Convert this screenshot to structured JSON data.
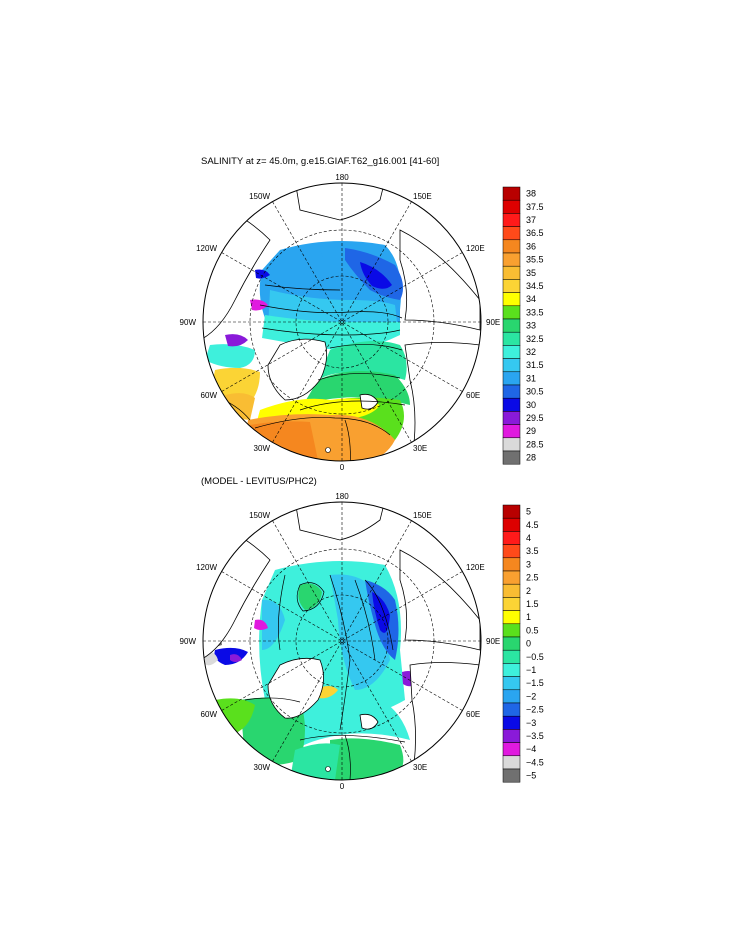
{
  "panel_top": {
    "title": "SALINITY at z=  45.0m, g.e15.GIAF.T62_g16.001 [41-60]",
    "meridian_labels": {
      "top": "180",
      "bottom": "0",
      "left_mid": "90W",
      "right_mid": "90E",
      "left_upper": "120W",
      "right_upper": "120E",
      "left_top": "150W",
      "right_top": "150E",
      "left_lower": "60W",
      "right_lower": "60E",
      "left_bottom": "30W",
      "right_bottom": "30E"
    },
    "colorbar": {
      "labels": [
        "38",
        "37.5",
        "37",
        "36.5",
        "36",
        "35.5",
        "35",
        "34.5",
        "34",
        "33.5",
        "33",
        "32.5",
        "32",
        "31.5",
        "31",
        "30.5",
        "30",
        "29.5",
        "29",
        "28.5",
        "28"
      ],
      "colors": [
        "#b80000",
        "#dd0000",
        "#ff1a1a",
        "#ff4a1a",
        "#f5871f",
        "#f9a030",
        "#f9bd33",
        "#fbd435",
        "#ffff00",
        "#5ae01d",
        "#29d66f",
        "#2be5a2",
        "#3ef0dc",
        "#35c8f0",
        "#2aa5f0",
        "#1f66e6",
        "#0a0ae6",
        "#8a1ad9",
        "#e01adf",
        "#dadada",
        "#707070"
      ]
    }
  },
  "panel_bottom": {
    "title": "(MODEL - LEVITUS/PHC2)",
    "meridian_labels": {
      "top": "180",
      "bottom": "0",
      "left_mid": "90W",
      "right_mid": "90E",
      "left_upper": "120W",
      "right_upper": "120E",
      "left_top": "150W",
      "right_top": "150E",
      "left_lower": "60W",
      "right_lower": "60E",
      "left_bottom": "30W",
      "right_bottom": "30E"
    },
    "colorbar": {
      "labels": [
        "5",
        "4.5",
        "4",
        "3.5",
        "3",
        "2.5",
        "2",
        "1.5",
        "1",
        "0.5",
        "0",
        "−0.5",
        "−1",
        "−1.5",
        "−2",
        "−2.5",
        "−3",
        "−3.5",
        "−4",
        "−4.5",
        "−5"
      ],
      "colors": [
        "#b80000",
        "#dd0000",
        "#ff1a1a",
        "#ff4a1a",
        "#f5871f",
        "#f9a030",
        "#f9bd33",
        "#fbd435",
        "#ffff00",
        "#5ae01d",
        "#29d66f",
        "#2be5a2",
        "#3ef0dc",
        "#35c8f0",
        "#2aa5f0",
        "#1f66e6",
        "#0a0ae6",
        "#8a1ad9",
        "#e01adf",
        "#dadada",
        "#707070"
      ]
    }
  }
}
